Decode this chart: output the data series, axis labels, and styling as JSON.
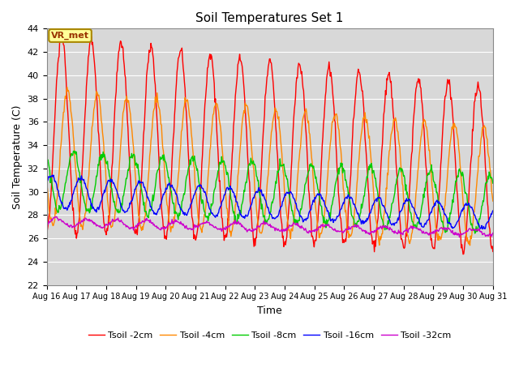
{
  "title": "Soil Temperatures Set 1",
  "xlabel": "Time",
  "ylabel": "Soil Temperature (C)",
  "ylim": [
    22,
    44
  ],
  "yticks": [
    22,
    24,
    26,
    28,
    30,
    32,
    34,
    36,
    38,
    40,
    42,
    44
  ],
  "colors": {
    "Tsoil -2cm": "#ff0000",
    "Tsoil -4cm": "#ff8800",
    "Tsoil -8cm": "#00cc00",
    "Tsoil -16cm": "#0000ff",
    "Tsoil -32cm": "#cc00cc"
  },
  "bg_color": "#d8d8d8",
  "fig_bg_color": "#ffffff",
  "grid_color": "#ffffff",
  "annotation_text": "VR_met",
  "annotation_fg": "#993300",
  "annotation_bg": "#ffff99",
  "annotation_border": "#aa8800",
  "start_day": 16,
  "end_day": 31,
  "points_per_day": 48
}
